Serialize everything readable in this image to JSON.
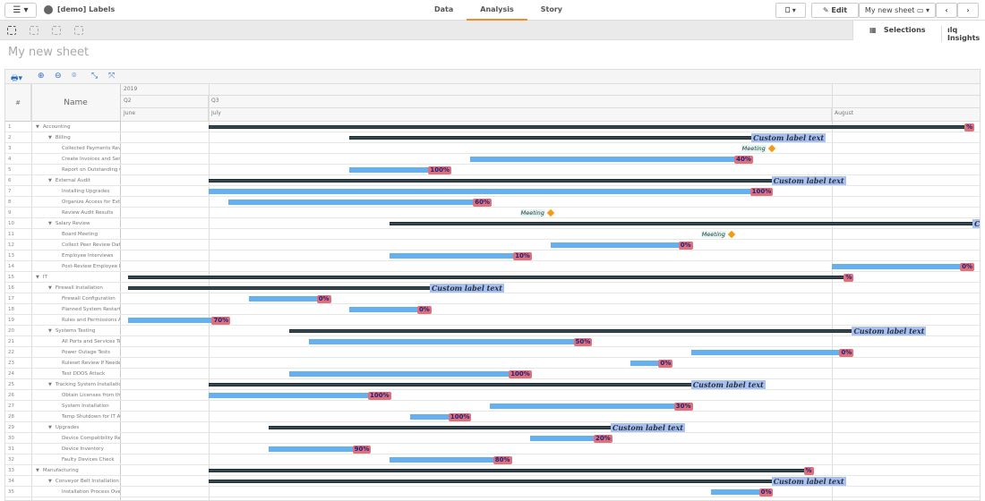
{
  "app": {
    "title": "[demo] Labels",
    "tabs": [
      "Data",
      "Analysis",
      "Story"
    ],
    "active_tab": "Analysis",
    "edit_label": "Edit",
    "sheet_selector": "My new sheet",
    "selections_label": "Selections",
    "insights_label": "Insights"
  },
  "sheet": {
    "title": "My new sheet"
  },
  "gantt": {
    "header": {
      "num_col": "#",
      "name_col": "Name",
      "year": "2019",
      "quarters": [
        "Q2",
        "Q3"
      ],
      "months": [
        "June",
        "July",
        "August"
      ]
    },
    "colors": {
      "task": "#64b0f0",
      "summary": "#37474f",
      "percent_label": "#e0707a",
      "custom_label": "#a9c0f5",
      "milestone": "#f39c12"
    },
    "rows": [
      {
        "n": "1",
        "name": "Accounting",
        "level": 0,
        "type": "summary",
        "start": "2019-07-01",
        "end": "2019-08-08",
        "label": "%"
      },
      {
        "n": "2",
        "name": "Billing",
        "level": 1,
        "type": "summary",
        "start": "2019-07-08",
        "end": "2019-07-28",
        "label": "Custom label text",
        "custom": true
      },
      {
        "n": "3",
        "name": "Collected Payments Review",
        "level": 2,
        "type": "milestone",
        "start": "2019-07-29",
        "label": "Meeting"
      },
      {
        "n": "4",
        "name": "Create Invoices and Send I",
        "level": 2,
        "type": "task",
        "start": "2019-07-14",
        "end": "2019-07-28",
        "label": "40%"
      },
      {
        "n": "5",
        "name": "Report on Outstanding Col",
        "level": 2,
        "type": "task",
        "start": "2019-07-08",
        "end": "2019-07-13",
        "label": "100%"
      },
      {
        "n": "6",
        "name": "External Audit",
        "level": 1,
        "type": "summary",
        "start": "2019-07-01",
        "end": "2019-07-29",
        "label": "Custom  label text",
        "custom": true
      },
      {
        "n": "7",
        "name": "Installing Upgrades",
        "level": 2,
        "type": "task",
        "start": "2019-07-01",
        "end": "2019-07-29",
        "label": "100%"
      },
      {
        "n": "8",
        "name": "Organize Access for Extern",
        "level": 2,
        "type": "task",
        "start": "2019-07-02",
        "end": "2019-07-15",
        "label": "60%"
      },
      {
        "n": "9",
        "name": "Review Audit Results",
        "level": 2,
        "type": "milestone",
        "start": "2019-07-18",
        "label": "Meeting"
      },
      {
        "n": "10",
        "name": "Salary Review",
        "level": 1,
        "type": "summary",
        "start": "2019-07-10",
        "end": "2019-08-08",
        "label": "C",
        "custom": true
      },
      {
        "n": "11",
        "name": "Board Meeting",
        "level": 2,
        "type": "milestone",
        "start": "2019-07-27",
        "label": "Meeting"
      },
      {
        "n": "12",
        "name": "Collect Peer Review Data",
        "level": 2,
        "type": "task",
        "start": "2019-07-18",
        "end": "2019-07-25",
        "label": "0%"
      },
      {
        "n": "13",
        "name": "Employee Interviews",
        "level": 2,
        "type": "task",
        "start": "2019-07-10",
        "end": "2019-07-17",
        "label": "10%"
      },
      {
        "n": "14",
        "name": "Post-Review Employee Inte",
        "level": 2,
        "type": "task",
        "start": "2019-08-01",
        "end": "2019-08-08",
        "label": "0%"
      },
      {
        "n": "15",
        "name": "IT",
        "level": 0,
        "type": "summary",
        "start": "2019-06-27",
        "end": "2019-08-02",
        "label": "%"
      },
      {
        "n": "16",
        "name": "Firewall Installation",
        "level": 1,
        "type": "summary",
        "start": "2019-06-27",
        "end": "2019-07-12",
        "label": "Custom  label text",
        "custom": true
      },
      {
        "n": "17",
        "name": "Firewall Configuration",
        "level": 2,
        "type": "task",
        "start": "2019-07-03",
        "end": "2019-07-07",
        "label": "0%"
      },
      {
        "n": "18",
        "name": "Planned System Restart",
        "level": 2,
        "type": "task",
        "start": "2019-07-08",
        "end": "2019-07-12",
        "label": "0%"
      },
      {
        "n": "19",
        "name": "Rules and Permissions Auc",
        "level": 2,
        "type": "task",
        "start": "2019-06-27",
        "end": "2019-07-02",
        "label": "70%"
      },
      {
        "n": "20",
        "name": "Systems Testing",
        "level": 1,
        "type": "summary",
        "start": "2019-07-05",
        "end": "2019-08-02",
        "label": "Custom label text",
        "custom": true
      },
      {
        "n": "21",
        "name": "All Ports and Services Test",
        "level": 2,
        "type": "task",
        "start": "2019-07-06",
        "end": "2019-07-20",
        "label": "50%"
      },
      {
        "n": "22",
        "name": "Power Outage Tests",
        "level": 2,
        "type": "task",
        "start": "2019-07-25",
        "end": "2019-08-02",
        "label": "0%"
      },
      {
        "n": "23",
        "name": "Ruleset Review If Needed",
        "level": 2,
        "type": "task",
        "start": "2019-07-22",
        "end": "2019-07-24",
        "label": "0%"
      },
      {
        "n": "24",
        "name": "Test DDOS Attack",
        "level": 2,
        "type": "task",
        "start": "2019-07-05",
        "end": "2019-07-17",
        "label": "100%"
      },
      {
        "n": "25",
        "name": "Tracking System Installation",
        "level": 1,
        "type": "summary",
        "start": "2019-07-01",
        "end": "2019-07-25",
        "label": "Custom label text",
        "custom": true
      },
      {
        "n": "26",
        "name": "Obtain Licenses from the V",
        "level": 2,
        "type": "task",
        "start": "2019-07-01",
        "end": "2019-07-10",
        "label": "100%"
      },
      {
        "n": "27",
        "name": "System Installation",
        "level": 2,
        "type": "task",
        "start": "2019-07-15",
        "end": "2019-07-25",
        "label": "30%"
      },
      {
        "n": "28",
        "name": "Temp Shutdown for IT Aud",
        "level": 2,
        "type": "task",
        "start": "2019-07-11",
        "end": "2019-07-14",
        "label": "100%"
      },
      {
        "n": "29",
        "name": "Upgrades",
        "level": 1,
        "type": "summary",
        "start": "2019-07-04",
        "end": "2019-07-21",
        "label": "Custom label text",
        "custom": true
      },
      {
        "n": "30",
        "name": "Device Compatibility Revie",
        "level": 2,
        "type": "task",
        "start": "2019-07-17",
        "end": "2019-07-21",
        "label": "20%"
      },
      {
        "n": "31",
        "name": "Device Inventory",
        "level": 2,
        "type": "task",
        "start": "2019-07-04",
        "end": "2019-07-09",
        "label": "90%"
      },
      {
        "n": "32",
        "name": "Faulty Devices Check",
        "level": 2,
        "type": "task",
        "start": "2019-07-10",
        "end": "2019-07-16",
        "label": "80%"
      },
      {
        "n": "33",
        "name": "Manufacturing",
        "level": 0,
        "type": "summary",
        "start": "2019-07-01",
        "end": "2019-07-31",
        "label": "%"
      },
      {
        "n": "34",
        "name": "Conveyor Belt Installation",
        "level": 1,
        "type": "summary",
        "start": "2019-07-01",
        "end": "2019-07-29",
        "label": "Custom label text",
        "custom": true
      },
      {
        "n": "35",
        "name": "Installation Process Overv",
        "level": 2,
        "type": "task",
        "start": "2019-07-26",
        "end": "2019-07-29",
        "label": "0%"
      }
    ]
  }
}
